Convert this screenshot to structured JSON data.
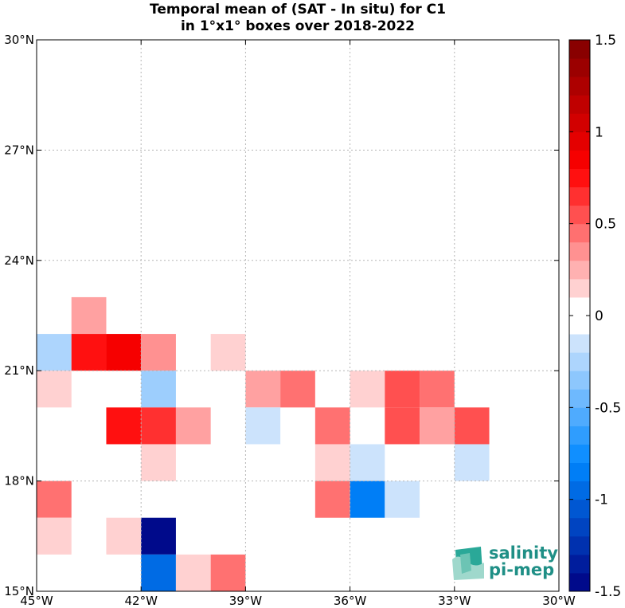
{
  "title": {
    "line1": "Temporal mean of (SAT - In situ) for C1",
    "line2": "in 1°x1° boxes over 2018-2022"
  },
  "map": {
    "lon_range": [
      -45,
      -30
    ],
    "lat_range": [
      15,
      30
    ],
    "lon_ticks": [
      {
        "value": -45,
        "label": "45°W"
      },
      {
        "value": -42,
        "label": "42°W"
      },
      {
        "value": -39,
        "label": "39°W"
      },
      {
        "value": -36,
        "label": "36°W"
      },
      {
        "value": -33,
        "label": "33°W"
      },
      {
        "value": -30,
        "label": "30°W"
      }
    ],
    "lat_ticks": [
      {
        "value": 15,
        "label": "15°N"
      },
      {
        "value": 18,
        "label": "18°N"
      },
      {
        "value": 21,
        "label": "21°N"
      },
      {
        "value": 24,
        "label": "24°N"
      },
      {
        "value": 27,
        "label": "27°N"
      },
      {
        "value": 30,
        "label": "30°N"
      }
    ],
    "grid": true,
    "cells": [
      {
        "lon": -44,
        "lat": 22,
        "value": 0.3
      },
      {
        "lon": -45,
        "lat": 21,
        "value": -0.25
      },
      {
        "lon": -44,
        "lat": 21,
        "value": 0.75
      },
      {
        "lon": -43,
        "lat": 21,
        "value": 0.85
      },
      {
        "lon": -42,
        "lat": 21,
        "value": 0.35
      },
      {
        "lon": -40,
        "lat": 21,
        "value": 0.15
      },
      {
        "lon": -45,
        "lat": 20,
        "value": 0.15
      },
      {
        "lon": -42,
        "lat": 20,
        "value": -0.3
      },
      {
        "lon": -39,
        "lat": 20,
        "value": 0.3
      },
      {
        "lon": -38,
        "lat": 20,
        "value": 0.45
      },
      {
        "lon": -36,
        "lat": 20,
        "value": 0.15
      },
      {
        "lon": -35,
        "lat": 20,
        "value": 0.55
      },
      {
        "lon": -34,
        "lat": 20,
        "value": 0.45
      },
      {
        "lon": -43,
        "lat": 19,
        "value": 0.75
      },
      {
        "lon": -42,
        "lat": 19,
        "value": 0.65
      },
      {
        "lon": -41,
        "lat": 19,
        "value": 0.3
      },
      {
        "lon": -39,
        "lat": 19,
        "value": -0.15
      },
      {
        "lon": -37,
        "lat": 19,
        "value": 0.45
      },
      {
        "lon": -35,
        "lat": 19,
        "value": 0.55
      },
      {
        "lon": -34,
        "lat": 19,
        "value": 0.3
      },
      {
        "lon": -33,
        "lat": 19,
        "value": 0.55
      },
      {
        "lon": -42,
        "lat": 18,
        "value": 0.15
      },
      {
        "lon": -37,
        "lat": 18,
        "value": 0.15
      },
      {
        "lon": -36,
        "lat": 18,
        "value": -0.15
      },
      {
        "lon": -33,
        "lat": 18,
        "value": -0.15
      },
      {
        "lon": -45,
        "lat": 17,
        "value": 0.45
      },
      {
        "lon": -37,
        "lat": 17,
        "value": 0.45
      },
      {
        "lon": -36,
        "lat": 17,
        "value": -0.85
      },
      {
        "lon": -35,
        "lat": 17,
        "value": -0.15
      },
      {
        "lon": -45,
        "lat": 16,
        "value": 0.15
      },
      {
        "lon": -43,
        "lat": 16,
        "value": 0.15
      },
      {
        "lon": -42,
        "lat": 16,
        "value": -1.45
      },
      {
        "lon": -42,
        "lat": 15,
        "value": -0.95
      },
      {
        "lon": -41,
        "lat": 15,
        "value": 0.15
      },
      {
        "lon": -40,
        "lat": 15,
        "value": 0.45
      }
    ]
  },
  "colorbar": {
    "min": -1.5,
    "max": 1.5,
    "step": 0.1,
    "ticks": [
      {
        "value": 1.5,
        "label": "1.5"
      },
      {
        "value": 1.0,
        "label": "1"
      },
      {
        "value": 0.5,
        "label": "0.5"
      },
      {
        "value": 0.0,
        "label": "0"
      },
      {
        "value": -0.5,
        "label": "-0.5"
      },
      {
        "value": -1.0,
        "label": "-1"
      },
      {
        "value": -1.5,
        "label": "-1.5"
      }
    ],
    "colormap": "blue-white-red"
  },
  "logo": {
    "line1": "salinity",
    "line2": "pi-mep",
    "color": "#1f8f86"
  }
}
